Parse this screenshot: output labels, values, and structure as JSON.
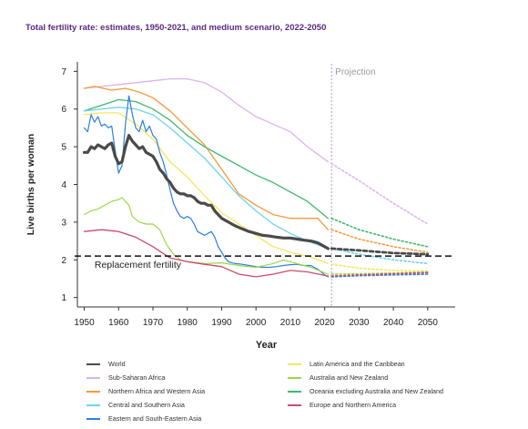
{
  "chart_data": {
    "type": "line",
    "title": "Total fertility rate: estimates, 1950-2021, and medium scenario, 2022-2050",
    "xlabel": "Year",
    "ylabel": "Live births per woman",
    "xlim": [
      1948,
      2058
    ],
    "ylim": [
      0.75,
      7.25
    ],
    "x_ticks": [
      1950,
      1960,
      1970,
      1980,
      1990,
      2000,
      2010,
      2020,
      2030,
      2040,
      2050
    ],
    "y_ticks": [
      1,
      2,
      3,
      4,
      5,
      6,
      7
    ],
    "projection_start": 2022,
    "projection_label": "Projection",
    "reference_line": {
      "value": 2.1,
      "label": "Replacement fertility"
    },
    "legend_position": "bottom",
    "grid": false,
    "series": [
      {
        "name": "Sub-Saharan Africa",
        "color": "#dcb3ec",
        "width": 1.3,
        "estimates": [
          [
            1950,
            6.55
          ],
          [
            1955,
            6.6
          ],
          [
            1960,
            6.65
          ],
          [
            1965,
            6.7
          ],
          [
            1970,
            6.75
          ],
          [
            1975,
            6.8
          ],
          [
            1980,
            6.8
          ],
          [
            1985,
            6.7
          ],
          [
            1990,
            6.45
          ],
          [
            1995,
            6.1
          ],
          [
            2000,
            5.8
          ],
          [
            2005,
            5.6
          ],
          [
            2010,
            5.4
          ],
          [
            2015,
            5.0
          ],
          [
            2021,
            4.6
          ]
        ],
        "projection": [
          [
            2022,
            4.55
          ],
          [
            2030,
            4.1
          ],
          [
            2040,
            3.5
          ],
          [
            2050,
            2.95
          ]
        ]
      },
      {
        "name": "Northern Africa and Western Asia",
        "color": "#f29b3a",
        "width": 1.3,
        "estimates": [
          [
            1950,
            6.55
          ],
          [
            1953,
            6.6
          ],
          [
            1958,
            6.5
          ],
          [
            1962,
            6.55
          ],
          [
            1966,
            6.45
          ],
          [
            1970,
            6.3
          ],
          [
            1975,
            5.95
          ],
          [
            1980,
            5.5
          ],
          [
            1985,
            5.05
          ],
          [
            1990,
            4.4
          ],
          [
            1995,
            3.75
          ],
          [
            2000,
            3.45
          ],
          [
            2005,
            3.2
          ],
          [
            2010,
            3.1
          ],
          [
            2015,
            3.1
          ],
          [
            2018,
            3.1
          ],
          [
            2021,
            2.8
          ]
        ],
        "projection": [
          [
            2022,
            2.8
          ],
          [
            2030,
            2.55
          ],
          [
            2040,
            2.35
          ],
          [
            2050,
            2.2
          ]
        ]
      },
      {
        "name": "Oceania excluding Australia and New Zealand",
        "color": "#3fb86a",
        "width": 1.3,
        "estimates": [
          [
            1950,
            5.95
          ],
          [
            1955,
            6.1
          ],
          [
            1960,
            6.25
          ],
          [
            1965,
            6.2
          ],
          [
            1970,
            6.0
          ],
          [
            1975,
            5.7
          ],
          [
            1980,
            5.3
          ],
          [
            1985,
            5.0
          ],
          [
            1990,
            4.75
          ],
          [
            1995,
            4.5
          ],
          [
            2000,
            4.25
          ],
          [
            2005,
            4.05
          ],
          [
            2010,
            3.8
          ],
          [
            2015,
            3.55
          ],
          [
            2021,
            3.1
          ]
        ],
        "projection": [
          [
            2022,
            3.1
          ],
          [
            2030,
            2.8
          ],
          [
            2040,
            2.55
          ],
          [
            2050,
            2.35
          ]
        ]
      },
      {
        "name": "Central and Southern Asia",
        "color": "#6fd3ee",
        "width": 1.3,
        "estimates": [
          [
            1950,
            5.95
          ],
          [
            1955,
            6.0
          ],
          [
            1960,
            6.05
          ],
          [
            1965,
            6.0
          ],
          [
            1970,
            5.85
          ],
          [
            1975,
            5.5
          ],
          [
            1980,
            5.1
          ],
          [
            1985,
            4.7
          ],
          [
            1990,
            4.2
          ],
          [
            1995,
            3.7
          ],
          [
            2000,
            3.3
          ],
          [
            2005,
            2.95
          ],
          [
            2010,
            2.7
          ],
          [
            2015,
            2.5
          ],
          [
            2021,
            2.3
          ]
        ],
        "projection": [
          [
            2022,
            2.3
          ],
          [
            2030,
            2.15
          ],
          [
            2040,
            2.0
          ],
          [
            2050,
            1.9
          ]
        ]
      },
      {
        "name": "Latin America and the Caribbean",
        "color": "#f7e65f",
        "width": 1.3,
        "estimates": [
          [
            1950,
            5.85
          ],
          [
            1955,
            5.9
          ],
          [
            1960,
            5.9
          ],
          [
            1965,
            5.6
          ],
          [
            1970,
            5.2
          ],
          [
            1975,
            4.6
          ],
          [
            1980,
            4.2
          ],
          [
            1985,
            3.7
          ],
          [
            1990,
            3.25
          ],
          [
            1995,
            2.95
          ],
          [
            2000,
            2.65
          ],
          [
            2005,
            2.35
          ],
          [
            2010,
            2.2
          ],
          [
            2015,
            2.1
          ],
          [
            2021,
            1.9
          ]
        ],
        "projection": [
          [
            2022,
            1.88
          ],
          [
            2030,
            1.78
          ],
          [
            2040,
            1.72
          ],
          [
            2050,
            1.7
          ]
        ]
      },
      {
        "name": "Eastern and South-Eastern Asia",
        "color": "#2b7fe0",
        "width": 1.2,
        "estimates": [
          [
            1950,
            5.5
          ],
          [
            1951,
            5.4
          ],
          [
            1952,
            5.85
          ],
          [
            1953,
            5.65
          ],
          [
            1954,
            5.8
          ],
          [
            1955,
            5.55
          ],
          [
            1956,
            5.6
          ],
          [
            1957,
            5.5
          ],
          [
            1958,
            5.55
          ],
          [
            1959,
            4.9
          ],
          [
            1960,
            4.3
          ],
          [
            1961,
            4.5
          ],
          [
            1962,
            5.6
          ],
          [
            1963,
            6.35
          ],
          [
            1964,
            5.85
          ],
          [
            1965,
            5.5
          ],
          [
            1966,
            5.4
          ],
          [
            1967,
            5.7
          ],
          [
            1968,
            5.4
          ],
          [
            1969,
            5.55
          ],
          [
            1970,
            5.3
          ],
          [
            1971,
            5.2
          ],
          [
            1972,
            4.85
          ],
          [
            1973,
            4.6
          ],
          [
            1974,
            4.25
          ],
          [
            1975,
            3.85
          ],
          [
            1976,
            3.5
          ],
          [
            1977,
            3.3
          ],
          [
            1978,
            3.15
          ],
          [
            1979,
            3.1
          ],
          [
            1980,
            3.15
          ],
          [
            1981,
            3.1
          ],
          [
            1982,
            2.95
          ],
          [
            1983,
            2.75
          ],
          [
            1984,
            2.7
          ],
          [
            1985,
            2.65
          ],
          [
            1986,
            2.7
          ],
          [
            1987,
            2.75
          ],
          [
            1988,
            2.6
          ],
          [
            1989,
            2.35
          ],
          [
            1990,
            2.2
          ],
          [
            1991,
            2.05
          ],
          [
            1992,
            1.95
          ],
          [
            1993,
            1.92
          ],
          [
            1994,
            1.9
          ],
          [
            1996,
            1.88
          ],
          [
            1998,
            1.85
          ],
          [
            2000,
            1.82
          ],
          [
            2002,
            1.8
          ],
          [
            2004,
            1.8
          ],
          [
            2006,
            1.82
          ],
          [
            2008,
            1.85
          ],
          [
            2010,
            1.87
          ],
          [
            2012,
            1.88
          ],
          [
            2014,
            1.85
          ],
          [
            2016,
            1.85
          ],
          [
            2018,
            1.75
          ],
          [
            2020,
            1.6
          ],
          [
            2021,
            1.55
          ]
        ],
        "projection": [
          [
            2022,
            1.55
          ],
          [
            2030,
            1.58
          ],
          [
            2040,
            1.6
          ],
          [
            2050,
            1.62
          ]
        ]
      },
      {
        "name": "Australia and New Zealand",
        "color": "#9ad848",
        "width": 1.2,
        "estimates": [
          [
            1950,
            3.2
          ],
          [
            1952,
            3.3
          ],
          [
            1954,
            3.35
          ],
          [
            1956,
            3.45
          ],
          [
            1958,
            3.55
          ],
          [
            1960,
            3.6
          ],
          [
            1961,
            3.65
          ],
          [
            1962,
            3.55
          ],
          [
            1963,
            3.45
          ],
          [
            1964,
            3.15
          ],
          [
            1966,
            3.0
          ],
          [
            1968,
            2.95
          ],
          [
            1970,
            2.95
          ],
          [
            1972,
            2.8
          ],
          [
            1974,
            2.4
          ],
          [
            1976,
            2.15
          ],
          [
            1978,
            2.0
          ],
          [
            1980,
            1.95
          ],
          [
            1985,
            1.9
          ],
          [
            1990,
            1.92
          ],
          [
            1995,
            1.85
          ],
          [
            2000,
            1.8
          ],
          [
            2005,
            1.9
          ],
          [
            2008,
            2.0
          ],
          [
            2012,
            1.9
          ],
          [
            2016,
            1.8
          ],
          [
            2021,
            1.62
          ]
        ],
        "projection": [
          [
            2022,
            1.62
          ],
          [
            2030,
            1.63
          ],
          [
            2040,
            1.65
          ],
          [
            2050,
            1.68
          ]
        ]
      },
      {
        "name": "Europe and Northern America",
        "color": "#c94c6c",
        "width": 1.3,
        "estimates": [
          [
            1950,
            2.75
          ],
          [
            1955,
            2.8
          ],
          [
            1960,
            2.75
          ],
          [
            1965,
            2.6
          ],
          [
            1970,
            2.35
          ],
          [
            1975,
            2.05
          ],
          [
            1980,
            1.95
          ],
          [
            1985,
            1.88
          ],
          [
            1990,
            1.82
          ],
          [
            1995,
            1.62
          ],
          [
            2000,
            1.55
          ],
          [
            2005,
            1.62
          ],
          [
            2010,
            1.72
          ],
          [
            2015,
            1.68
          ],
          [
            2021,
            1.57
          ]
        ],
        "projection": [
          [
            2022,
            1.57
          ],
          [
            2030,
            1.6
          ],
          [
            2040,
            1.63
          ],
          [
            2050,
            1.66
          ]
        ]
      },
      {
        "name": "World",
        "color": "#4a4a4a",
        "width": 3.2,
        "estimates": [
          [
            1950,
            4.85
          ],
          [
            1951,
            4.85
          ],
          [
            1952,
            5.0
          ],
          [
            1953,
            4.95
          ],
          [
            1954,
            5.05
          ],
          [
            1955,
            5.0
          ],
          [
            1956,
            4.95
          ],
          [
            1957,
            5.05
          ],
          [
            1958,
            5.1
          ],
          [
            1959,
            4.75
          ],
          [
            1960,
            4.55
          ],
          [
            1961,
            4.6
          ],
          [
            1962,
            5.0
          ],
          [
            1963,
            5.3
          ],
          [
            1964,
            5.15
          ],
          [
            1965,
            5.05
          ],
          [
            1966,
            4.95
          ],
          [
            1967,
            5.0
          ],
          [
            1968,
            4.85
          ],
          [
            1969,
            4.8
          ],
          [
            1970,
            4.75
          ],
          [
            1971,
            4.6
          ],
          [
            1972,
            4.4
          ],
          [
            1973,
            4.3
          ],
          [
            1974,
            4.15
          ],
          [
            1975,
            4.05
          ],
          [
            1976,
            3.9
          ],
          [
            1977,
            3.8
          ],
          [
            1978,
            3.75
          ],
          [
            1979,
            3.75
          ],
          [
            1980,
            3.7
          ],
          [
            1981,
            3.7
          ],
          [
            1982,
            3.65
          ],
          [
            1983,
            3.55
          ],
          [
            1984,
            3.5
          ],
          [
            1985,
            3.5
          ],
          [
            1986,
            3.45
          ],
          [
            1987,
            3.45
          ],
          [
            1988,
            3.3
          ],
          [
            1989,
            3.2
          ],
          [
            1990,
            3.1
          ],
          [
            1992,
            3.0
          ],
          [
            1994,
            2.9
          ],
          [
            1996,
            2.82
          ],
          [
            1998,
            2.75
          ],
          [
            2000,
            2.7
          ],
          [
            2002,
            2.65
          ],
          [
            2004,
            2.63
          ],
          [
            2006,
            2.6
          ],
          [
            2008,
            2.58
          ],
          [
            2010,
            2.58
          ],
          [
            2012,
            2.55
          ],
          [
            2014,
            2.52
          ],
          [
            2016,
            2.5
          ],
          [
            2018,
            2.45
          ],
          [
            2020,
            2.35
          ],
          [
            2021,
            2.3
          ]
        ],
        "projection": [
          [
            2022,
            2.3
          ],
          [
            2030,
            2.25
          ],
          [
            2040,
            2.18
          ],
          [
            2050,
            2.15
          ]
        ]
      }
    ],
    "legend_order": [
      "World",
      "Latin America and the Caribbean",
      "Sub-Saharan Africa",
      "Australia and New Zealand",
      "Northern Africa and Western Asia",
      "Oceania excluding Australia and New Zealand",
      "Central and Southern Asia",
      "Europe and Northern America",
      "Eastern and South-Eastern Asia"
    ]
  }
}
